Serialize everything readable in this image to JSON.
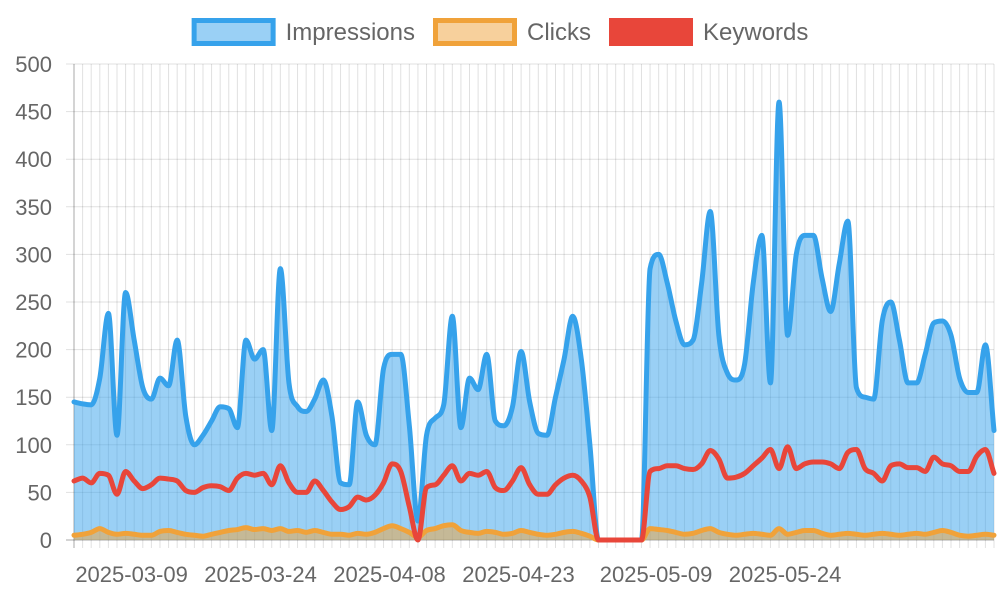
{
  "chart_data": {
    "type": "area",
    "x_start": "2025-03-03",
    "x_ticks": [
      "2025-03-09",
      "2025-03-24",
      "2025-04-08",
      "2025-04-23",
      "2025-05-09",
      "2025-05-24"
    ],
    "ylim": [
      0,
      500
    ],
    "y_ticks": [
      0,
      50,
      100,
      150,
      200,
      250,
      300,
      350,
      400,
      450,
      500
    ],
    "grid": true,
    "legend_position": "top",
    "series": [
      {
        "name": "Impressions",
        "color": "#36a2eb",
        "fill": "rgba(54,162,235,0.5)",
        "filled": true,
        "values": [
          145,
          143,
          142,
          170,
          238,
          110,
          260,
          210,
          160,
          148,
          170,
          162,
          210,
          130,
          100,
          110,
          125,
          140,
          138,
          118,
          210,
          190,
          200,
          115,
          285,
          165,
          140,
          135,
          148,
          168,
          130,
          60,
          58,
          145,
          110,
          100,
          180,
          195,
          195,
          120,
          20,
          110,
          128,
          142,
          235,
          118,
          170,
          158,
          195,
          125,
          120,
          140,
          198,
          145,
          112,
          110,
          150,
          190,
          235,
          190,
          100,
          0,
          0,
          0,
          0,
          0,
          0,
          285,
          300,
          270,
          230,
          205,
          210,
          270,
          345,
          215,
          175,
          168,
          185,
          270,
          320,
          165,
          460,
          215,
          300,
          320,
          320,
          275,
          240,
          290,
          335,
          160,
          150,
          148,
          230,
          250,
          210,
          165,
          165,
          195,
          228,
          230,
          215,
          170,
          155,
          155,
          205,
          115
        ]
      },
      {
        "name": "Clicks",
        "color": "#f0a23a",
        "fill": "rgba(240,162,58,0.5)",
        "filled": true,
        "values": [
          5,
          6,
          8,
          12,
          8,
          6,
          7,
          6,
          5,
          5,
          9,
          10,
          8,
          6,
          5,
          4,
          6,
          8,
          10,
          11,
          13,
          11,
          12,
          10,
          12,
          9,
          10,
          8,
          10,
          8,
          6,
          6,
          5,
          7,
          6,
          8,
          12,
          15,
          12,
          8,
          3,
          10,
          12,
          15,
          16,
          10,
          8,
          7,
          9,
          8,
          6,
          7,
          10,
          8,
          6,
          5,
          6,
          8,
          9,
          7,
          4,
          0,
          0,
          0,
          0,
          0,
          0,
          12,
          11,
          10,
          8,
          6,
          7,
          10,
          12,
          8,
          6,
          5,
          6,
          7,
          6,
          5,
          12,
          6,
          8,
          10,
          10,
          7,
          5,
          6,
          7,
          6,
          5,
          6,
          7,
          6,
          5,
          6,
          7,
          6,
          8,
          10,
          8,
          5,
          4,
          5,
          6,
          5
        ]
      },
      {
        "name": "Keywords",
        "color": "#e8463a",
        "fill": "",
        "filled": false,
        "values": [
          62,
          65,
          60,
          70,
          68,
          48,
          72,
          62,
          54,
          58,
          65,
          64,
          62,
          52,
          50,
          55,
          57,
          56,
          52,
          65,
          70,
          68,
          70,
          58,
          78,
          60,
          50,
          50,
          62,
          52,
          40,
          32,
          35,
          45,
          42,
          47,
          60,
          80,
          72,
          35,
          0,
          55,
          58,
          68,
          78,
          62,
          70,
          68,
          72,
          55,
          52,
          62,
          76,
          58,
          48,
          48,
          58,
          65,
          68,
          62,
          45,
          0,
          0,
          0,
          0,
          0,
          0,
          72,
          75,
          78,
          78,
          75,
          74,
          80,
          94,
          85,
          65,
          66,
          70,
          78,
          86,
          95,
          75,
          98,
          75,
          80,
          82,
          82,
          80,
          75,
          92,
          95,
          75,
          70,
          62,
          78,
          80,
          76,
          76,
          72,
          87,
          80,
          78,
          72,
          72,
          88,
          95,
          70
        ]
      }
    ]
  }
}
